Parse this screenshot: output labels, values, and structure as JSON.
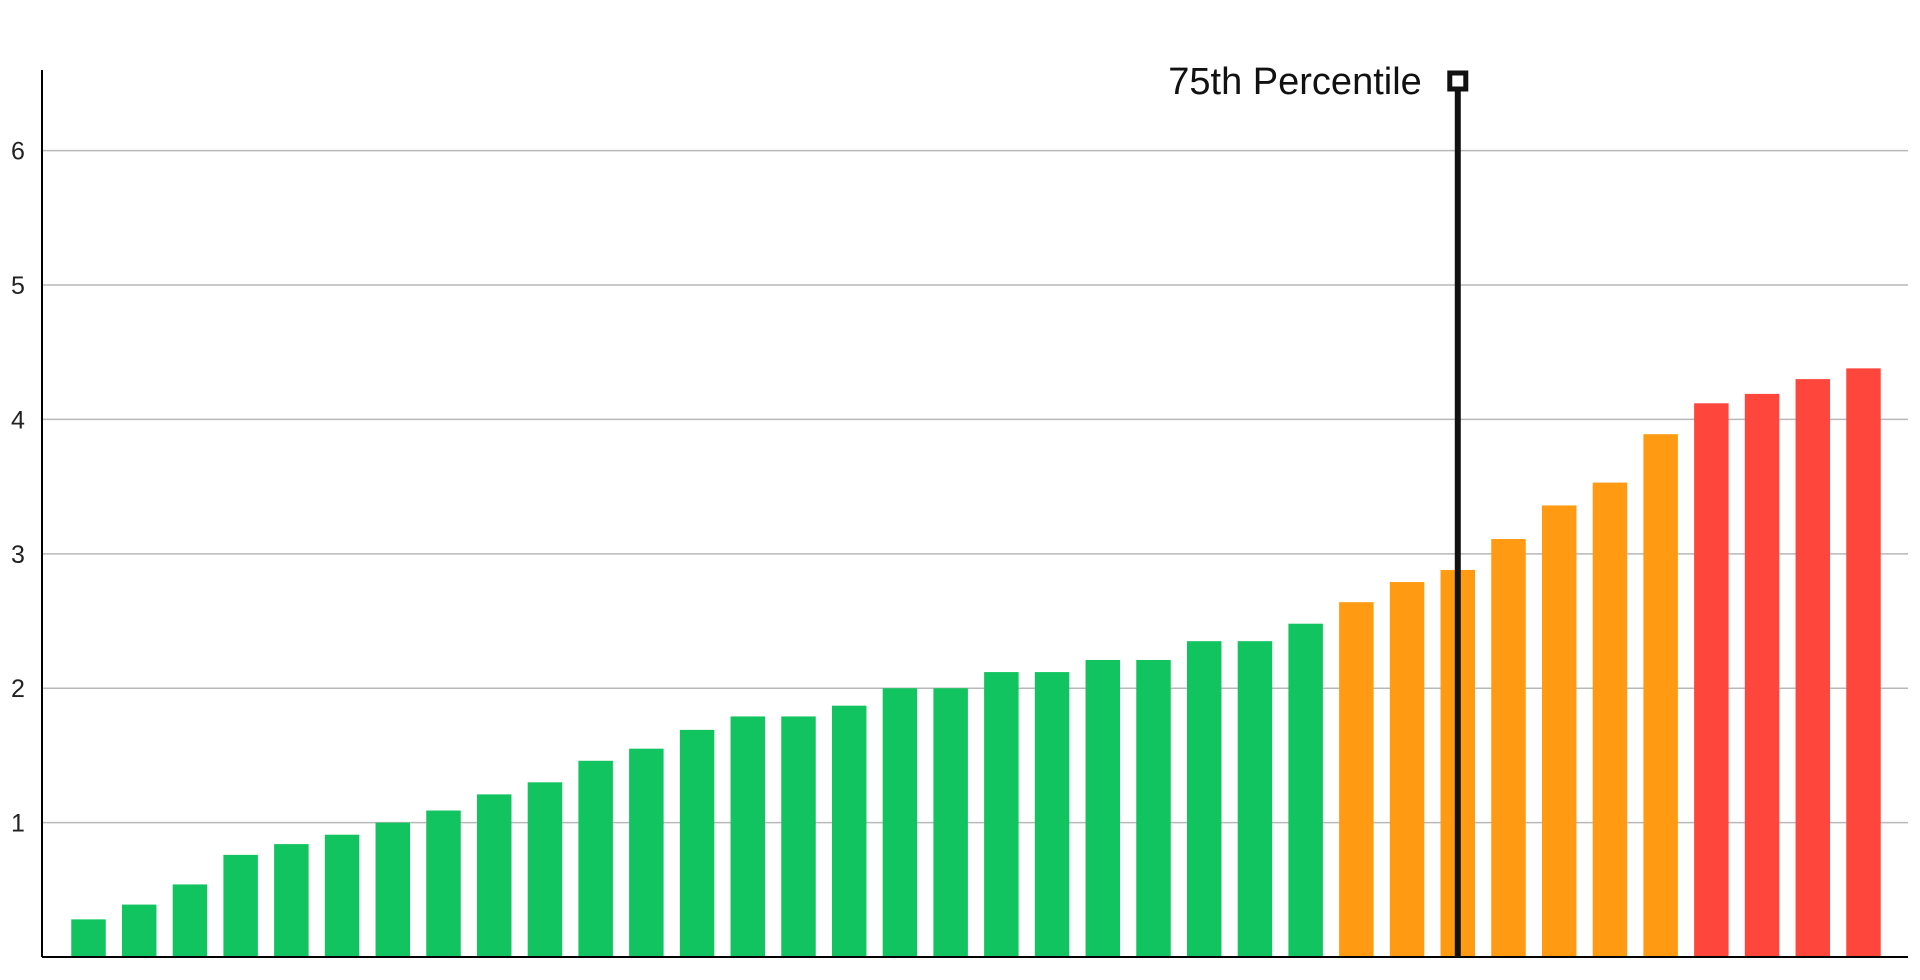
{
  "chart_data": {
    "type": "bar",
    "title": "",
    "xlabel": "",
    "ylabel": "",
    "ylim": [
      0,
      6.6
    ],
    "yticks": [
      1,
      2,
      3,
      4,
      5,
      6
    ],
    "grid": true,
    "legend": "none",
    "values": [
      0.28,
      0.39,
      0.54,
      0.76,
      0.84,
      0.91,
      1.0,
      1.09,
      1.21,
      1.3,
      1.46,
      1.55,
      1.69,
      1.79,
      1.79,
      1.87,
      2.0,
      2.0,
      2.12,
      2.12,
      2.21,
      2.21,
      2.35,
      2.35,
      2.48,
      2.64,
      2.79,
      2.88,
      3.11,
      3.36,
      3.53,
      3.89,
      4.12,
      4.19,
      4.3,
      4.38
    ],
    "bar_colors": [
      "#11c45f",
      "#11c45f",
      "#11c45f",
      "#11c45f",
      "#11c45f",
      "#11c45f",
      "#11c45f",
      "#11c45f",
      "#11c45f",
      "#11c45f",
      "#11c45f",
      "#11c45f",
      "#11c45f",
      "#11c45f",
      "#11c45f",
      "#11c45f",
      "#11c45f",
      "#11c45f",
      "#11c45f",
      "#11c45f",
      "#11c45f",
      "#11c45f",
      "#11c45f",
      "#11c45f",
      "#11c45f",
      "#ff9a12",
      "#ff9a12",
      "#ff9a12",
      "#ff9a12",
      "#ff9a12",
      "#ff9a12",
      "#ff9a12",
      "#ff463c",
      "#ff463c",
      "#ff463c",
      "#ff463c"
    ],
    "annotation": {
      "label": "75th Percentile",
      "position_index": 27,
      "color": "#111111"
    },
    "colors": {
      "good": "#11c45f",
      "needs_improvement": "#ff9a12",
      "poor": "#ff463c",
      "grid": "#b8b8b8",
      "axis": "#000000"
    }
  }
}
